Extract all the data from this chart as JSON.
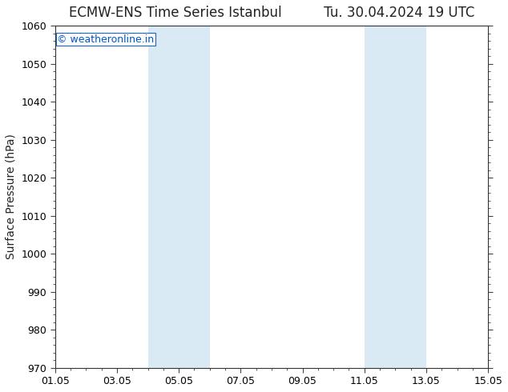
{
  "title_left": "ECMW-ENS Time Series Istanbul",
  "title_right": "Tu. 30.04.2024 19 UTC",
  "ylabel": "Surface Pressure (hPa)",
  "ylim": [
    970,
    1060
  ],
  "yticks": [
    970,
    980,
    990,
    1000,
    1010,
    1020,
    1030,
    1040,
    1050,
    1060
  ],
  "xlim_start": 0,
  "xlim_end": 14,
  "xtick_positions": [
    0,
    2,
    4,
    6,
    8,
    10,
    12,
    14
  ],
  "xtick_labels": [
    "01.05",
    "03.05",
    "05.05",
    "07.05",
    "09.05",
    "11.05",
    "13.05",
    "15.05"
  ],
  "shaded_bands": [
    {
      "xmin": 3.0,
      "xmax": 5.0
    },
    {
      "xmin": 10.0,
      "xmax": 12.0
    }
  ],
  "band_color": "#daeaf5",
  "background_color": "#ffffff",
  "watermark": "© weatheronline.in",
  "watermark_color": "#0055cc",
  "title_fontsize": 12,
  "axis_label_fontsize": 10,
  "tick_fontsize": 9,
  "watermark_fontsize": 9
}
